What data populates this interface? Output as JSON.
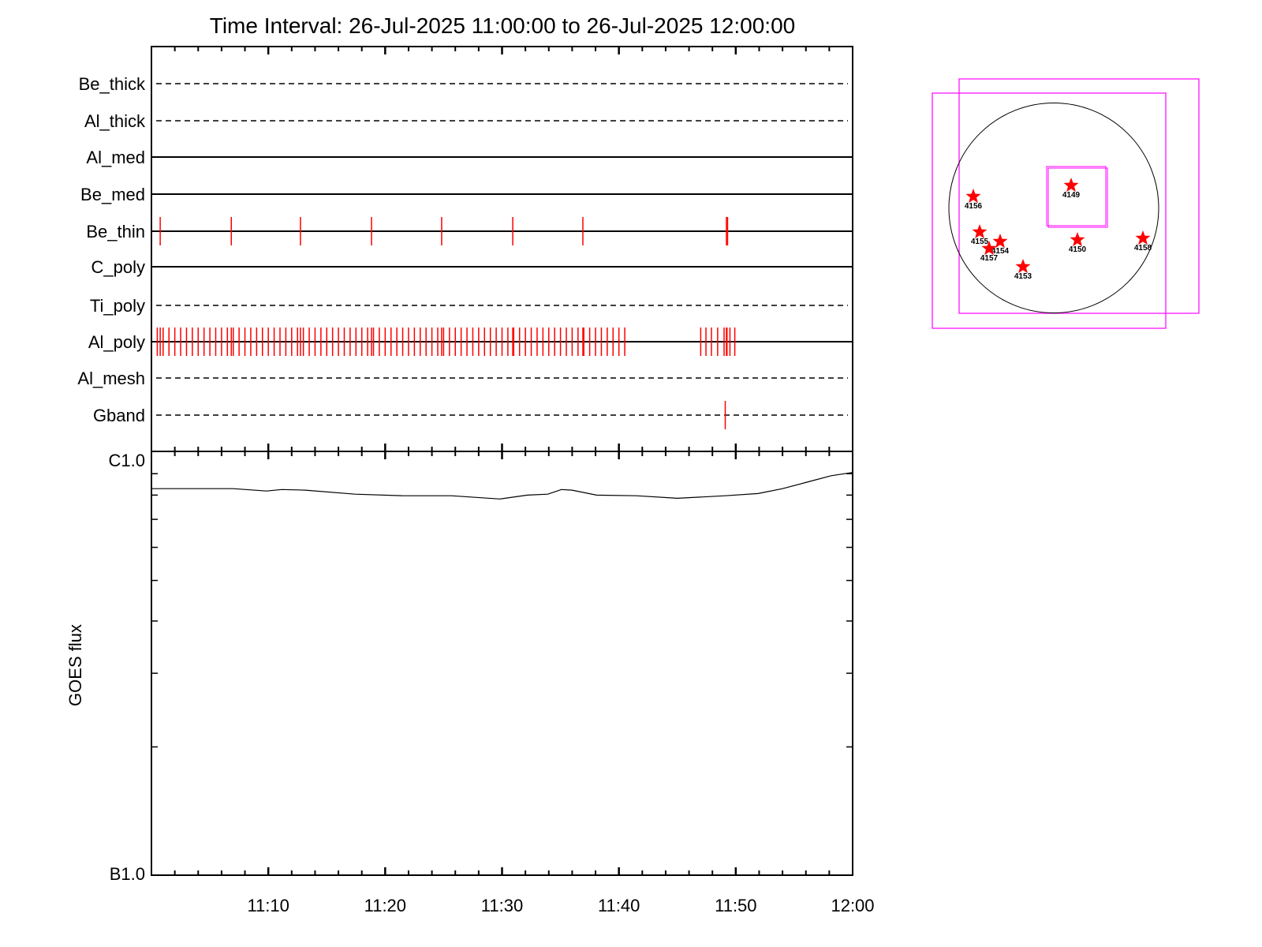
{
  "title": "Time Interval: 26-Jul-2025 11:00:00 to 26-Jul-2025 12:00:00",
  "colors": {
    "exposure": "#ff0000",
    "axis": "#000000",
    "fov_box": "#ff00ff",
    "region_star": "#ff0000"
  },
  "chart_data": [
    {
      "type": "timeline",
      "xlim": [
        "11:00:00",
        "12:00:00"
      ],
      "x_tick_labels": [
        "11:10",
        "11:20",
        "11:30",
        "11:40",
        "11:50",
        "12:00"
      ],
      "rows": [
        {
          "name": "Be_thick",
          "line": "dashed",
          "exposures": []
        },
        {
          "name": "Al_thick",
          "line": "dashed",
          "exposures": []
        },
        {
          "name": "Al_med",
          "line": "solid",
          "exposures": []
        },
        {
          "name": "Be_med",
          "line": "solid",
          "exposures": []
        },
        {
          "name": "Be_thin",
          "line": "solid",
          "exposures": [
            "11:00:45",
            "11:06:50",
            "11:12:45",
            "11:18:50",
            "11:24:50",
            "11:30:55",
            "11:36:55",
            "11:49:12",
            "11:49:18"
          ]
        },
        {
          "name": "C_poly",
          "line": "solid",
          "exposures": []
        },
        {
          "name": "Ti_poly",
          "line": "dashed",
          "exposures": []
        },
        {
          "name": "Al_poly",
          "line": "solid",
          "exposures": [
            "11:00:00",
            "11:00:30",
            "11:00:45",
            "11:01:00",
            "11:01:30",
            "11:02:00",
            "11:02:30",
            "11:03:00",
            "11:03:30",
            "11:04:00",
            "11:04:30",
            "11:05:00",
            "11:05:30",
            "11:06:00",
            "11:06:30",
            "11:06:50",
            "11:07:00",
            "11:07:30",
            "11:08:00",
            "11:08:30",
            "11:09:00",
            "11:09:30",
            "11:10:00",
            "11:10:30",
            "11:11:00",
            "11:11:30",
            "11:12:00",
            "11:12:30",
            "11:12:45",
            "11:13:00",
            "11:13:30",
            "11:14:00",
            "11:14:30",
            "11:15:00",
            "11:15:30",
            "11:16:00",
            "11:16:30",
            "11:17:00",
            "11:17:30",
            "11:18:00",
            "11:18:30",
            "11:18:50",
            "11:19:00",
            "11:19:30",
            "11:20:00",
            "11:20:30",
            "11:21:00",
            "11:21:30",
            "11:22:00",
            "11:22:30",
            "11:23:00",
            "11:23:30",
            "11:24:00",
            "11:24:30",
            "11:24:50",
            "11:25:00",
            "11:25:30",
            "11:26:00",
            "11:26:30",
            "11:27:00",
            "11:27:30",
            "11:28:00",
            "11:28:30",
            "11:29:00",
            "11:29:30",
            "11:30:00",
            "11:30:30",
            "11:30:55",
            "11:31:00",
            "11:31:30",
            "11:32:00",
            "11:32:30",
            "11:33:00",
            "11:33:30",
            "11:34:00",
            "11:34:30",
            "11:35:00",
            "11:35:30",
            "11:36:00",
            "11:36:30",
            "11:36:55",
            "11:37:00",
            "11:37:30",
            "11:38:00",
            "11:38:30",
            "11:39:00",
            "11:39:30",
            "11:40:00",
            "11:40:30",
            "11:47:00",
            "11:47:27",
            "11:47:55",
            "11:48:27",
            "11:49:00",
            "11:49:12",
            "11:49:15",
            "11:49:30",
            "11:49:55"
          ]
        },
        {
          "name": "Al_mesh",
          "line": "dashed",
          "exposures": []
        },
        {
          "name": "Gband",
          "line": "dashed",
          "exposures": [
            "11:49:06"
          ]
        }
      ]
    },
    {
      "type": "line",
      "ylabel": "GOES flux",
      "yscale": "log",
      "ylim": [
        1e-07,
        1e-06
      ],
      "y_tick_labels": [
        "B1.0",
        "C1.0"
      ],
      "xlim": [
        "11:00:00",
        "12:00:00"
      ],
      "x": [
        "11:00:00",
        "11:07:00",
        "11:09:50",
        "11:11:10",
        "11:13:10",
        "11:17:25",
        "11:21:30",
        "11:25:40",
        "11:29:50",
        "11:32:10",
        "11:33:55",
        "11:35:05",
        "11:36:00",
        "11:38:05",
        "11:41:30",
        "11:45:00",
        "11:49:05",
        "11:51:55",
        "11:54:00",
        "11:56:05",
        "11:58:10",
        "12:00:00"
      ],
      "y": [
        8.29e-07,
        8.29e-07,
        8.18e-07,
        8.25e-07,
        8.22e-07,
        8.04e-07,
        7.97e-07,
        7.97e-07,
        7.83e-07,
        8e-07,
        8.04e-07,
        8.25e-07,
        8.22e-07,
        8e-07,
        7.97e-07,
        7.86e-07,
        7.97e-07,
        8.07e-07,
        8.29e-07,
        8.59e-07,
        8.9e-07,
        9.06e-07
      ]
    }
  ],
  "sun_panel": {
    "regions": [
      "4149",
      "4156",
      "4155",
      "4154",
      "4157",
      "4150",
      "4158",
      "4153"
    ]
  }
}
